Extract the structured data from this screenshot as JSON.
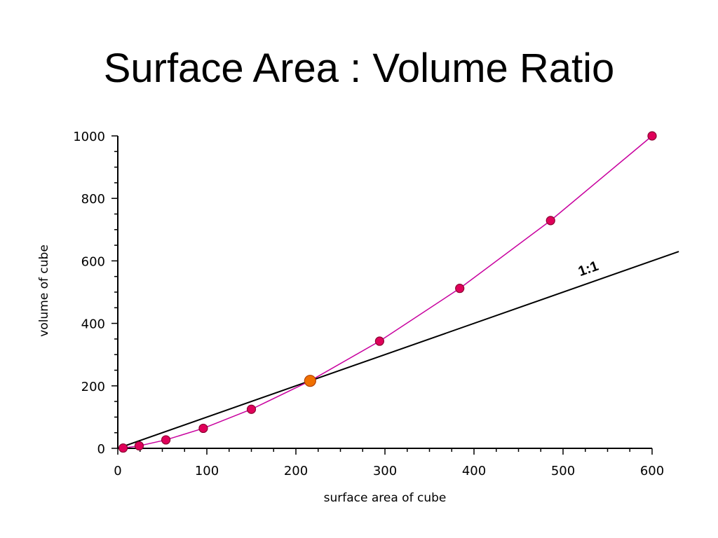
{
  "slide": {
    "title": "Surface Area : Volume Ratio"
  },
  "chart_data": {
    "type": "scatter",
    "title": "Surface Area : Volume Ratio",
    "xlabel": "surface area of cube",
    "ylabel": "volume of cube",
    "xlim": [
      0,
      600
    ],
    "ylim": [
      0,
      1000
    ],
    "xticks": [
      "0",
      "100",
      "200",
      "300",
      "400",
      "500",
      "600"
    ],
    "yticks": [
      "0",
      "200",
      "400",
      "600",
      "800",
      "1000"
    ],
    "series": [
      {
        "x": [
          6,
          24,
          54,
          96,
          150,
          216,
          294,
          384,
          486,
          600
        ],
        "y": [
          1,
          8,
          27,
          64,
          125,
          216,
          343,
          512,
          729,
          1000
        ],
        "highlight_index": 5,
        "color": "#e0005a",
        "line_color": "#c8009e",
        "highlight_color": "#f07000"
      }
    ],
    "reference_line": {
      "label": "1:1",
      "slope": 1,
      "x_range": [
        0,
        630
      ],
      "color": "#000000"
    },
    "grid": false
  }
}
